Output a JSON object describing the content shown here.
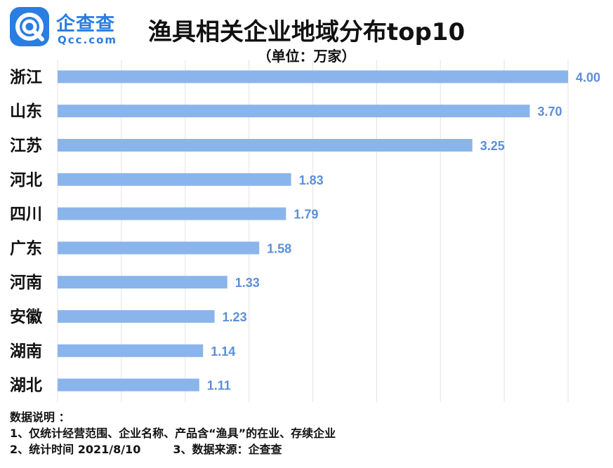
{
  "brand": {
    "name_cn": "企查查",
    "name_en": "Qcc.com",
    "icon": "qcc-logo-icon",
    "accent": "#2a7de1"
  },
  "header": {
    "title": "渔具相关企业地域分布top10",
    "unit": "（单位：万家）"
  },
  "chart_data": {
    "type": "bar",
    "orientation": "horizontal",
    "title": "渔具相关企业地域分布top10",
    "subtitle": "（单位：万家）",
    "categories": [
      "浙江",
      "山东",
      "江苏",
      "河北",
      "四川",
      "广东",
      "河南",
      "安徽",
      "湖南",
      "湖北"
    ],
    "values": [
      4.0,
      3.7,
      3.25,
      1.83,
      1.79,
      1.58,
      1.33,
      1.23,
      1.14,
      1.11
    ],
    "value_labels": [
      "4.00",
      "3.70",
      "3.25",
      "1.83",
      "1.79",
      "1.58",
      "1.33",
      "1.23",
      "1.14",
      "1.11"
    ],
    "xlim": [
      0,
      4
    ],
    "grid": true,
    "bar_color": "#8ab4ec",
    "label_color": "#5b8fd6"
  },
  "notes": {
    "heading": "数据说明 ：",
    "line1": "1、仅统计经营范围、企业名称、产品含“渔具”的在业、存续企业",
    "line2a": "2、统计时间 2021/8/10",
    "line2b": "3、数据来源：企查查"
  }
}
